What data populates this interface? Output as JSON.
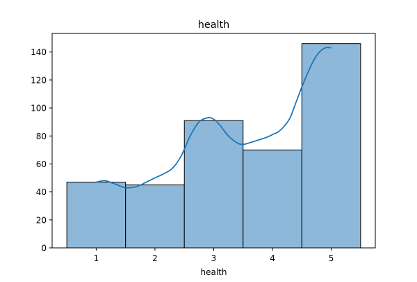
{
  "chart_data": {
    "type": "histogram",
    "title": "health",
    "xlabel": "health",
    "ylabel": "",
    "categories": [
      "1",
      "2",
      "3",
      "4",
      "5"
    ],
    "x_values": [
      1,
      2,
      3,
      4,
      5
    ],
    "values": [
      47,
      45,
      91,
      70,
      146
    ],
    "bin_edges": [
      0.5,
      1.5,
      2.5,
      3.5,
      4.5,
      5.5
    ],
    "xlim": [
      0.25,
      5.75
    ],
    "ylim": [
      0,
      153.3
    ],
    "xticks": [
      1,
      2,
      3,
      4,
      5
    ],
    "yticks": [
      0,
      20,
      40,
      60,
      80,
      100,
      120,
      140
    ],
    "grid": false,
    "kde": {
      "x": [
        1.0,
        1.15,
        1.3,
        1.5,
        1.7,
        1.85,
        2.0,
        2.15,
        2.3,
        2.45,
        2.6,
        2.75,
        2.9,
        3.0,
        3.1,
        3.25,
        3.4,
        3.5,
        3.6,
        3.75,
        3.9,
        4.0,
        4.1,
        4.2,
        4.3,
        4.4,
        4.5,
        4.6,
        4.7,
        4.8,
        4.9,
        5.0
      ],
      "y": [
        47,
        48,
        46,
        43,
        44,
        47,
        50,
        53,
        57,
        66,
        80,
        90,
        93,
        92,
        88,
        80,
        75,
        74,
        75,
        77,
        79,
        81,
        83,
        87,
        93,
        104,
        115,
        125,
        134,
        140,
        143,
        143
      ]
    },
    "colors": {
      "bar_fill": "#8db8da",
      "bar_edge": "#000000",
      "kde_line": "#1f77b4"
    }
  }
}
